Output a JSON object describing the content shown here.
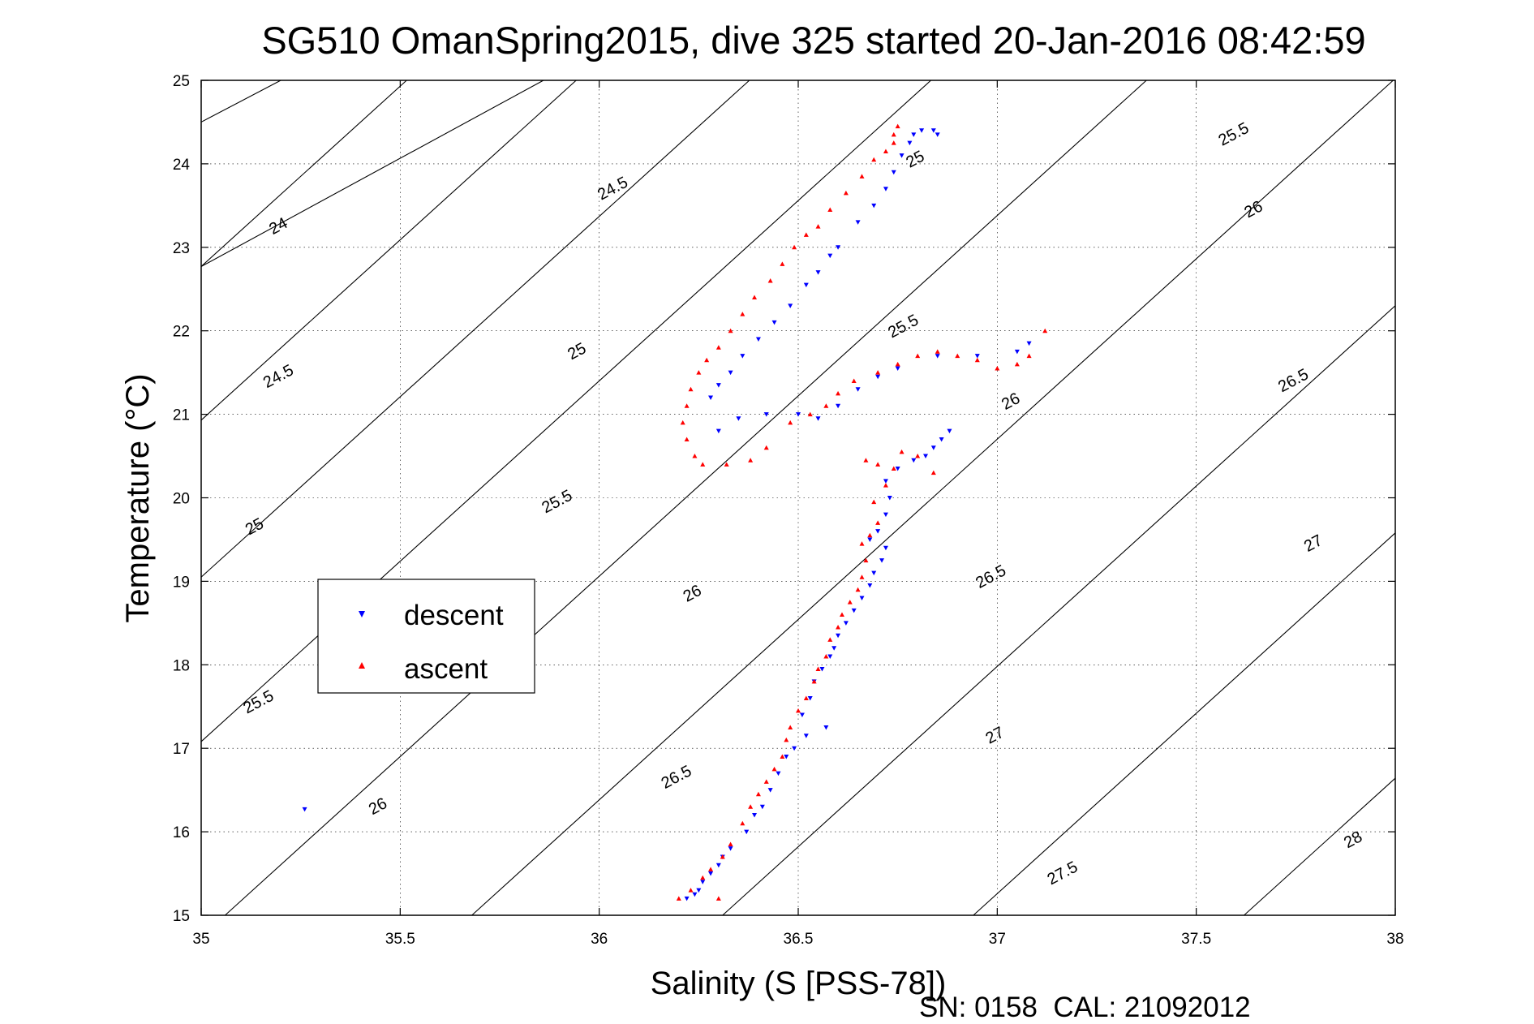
{
  "chart_data": {
    "type": "scatter",
    "title": "SG510 OmanSpring2015, dive 325 started 20-Jan-2016 08:42:59",
    "xlabel": "Salinity (S [PSS-78])",
    "ylabel": "Temperature (°C)",
    "xlim": [
      35,
      38
    ],
    "ylim": [
      15,
      25
    ],
    "x_ticks": [
      35,
      35.5,
      36,
      36.5,
      37,
      37.5,
      38
    ],
    "y_ticks": [
      15,
      16,
      17,
      18,
      19,
      20,
      21,
      22,
      23,
      24,
      25
    ],
    "grid": true,
    "legend_position": "left-center",
    "footer": "SN: 0158  CAL: 21092012",
    "density_contours": [
      {
        "level": 24,
        "label": "24",
        "a": 4.32,
        "c": 12.5
      },
      {
        "level": 24.5,
        "label": "24.5",
        "a": 4.32,
        "c": 12.5
      },
      {
        "level": 25,
        "label": "25",
        "a": 4.32,
        "c": 12.5
      },
      {
        "level": 25.5,
        "label": "25.5",
        "a": 4.32,
        "c": 12.5
      },
      {
        "level": 26,
        "label": "26",
        "a": 4.32,
        "c": 12.5
      },
      {
        "level": 26.5,
        "label": "26.5",
        "a": 4.32,
        "c": 12.5
      },
      {
        "level": 27,
        "label": "27",
        "a": 4.32,
        "c": 12.5
      },
      {
        "level": 27.5,
        "label": "27.5",
        "a": 4.32,
        "c": 12.5
      },
      {
        "level": 28,
        "label": "28",
        "a": 4.32,
        "c": 12.5
      }
    ],
    "contour_labels": [
      {
        "text": "24",
        "s": 35.2,
        "t": 23.2
      },
      {
        "text": "24.5",
        "s": 36.04,
        "t": 23.65
      },
      {
        "text": "25",
        "s": 36.8,
        "t": 24.0
      },
      {
        "text": "25.5",
        "s": 37.6,
        "t": 24.3
      },
      {
        "text": "24.5",
        "s": 35.2,
        "t": 21.4
      },
      {
        "text": "25",
        "s": 35.95,
        "t": 21.7
      },
      {
        "text": "25.5",
        "s": 36.77,
        "t": 22.0
      },
      {
        "text": "26",
        "s": 37.65,
        "t": 23.4
      },
      {
        "text": "25",
        "s": 35.14,
        "t": 19.6
      },
      {
        "text": "25.5",
        "s": 35.9,
        "t": 19.9
      },
      {
        "text": "26",
        "s": 37.04,
        "t": 21.1
      },
      {
        "text": "26.5",
        "s": 37.75,
        "t": 21.35
      },
      {
        "text": "25.5",
        "s": 35.15,
        "t": 17.5
      },
      {
        "text": "26",
        "s": 36.24,
        "t": 18.8
      },
      {
        "text": "26.5",
        "s": 36.99,
        "t": 19.0
      },
      {
        "text": "27",
        "s": 37.8,
        "t": 19.4
      },
      {
        "text": "26",
        "s": 35.45,
        "t": 16.25
      },
      {
        "text": "26.5",
        "s": 36.2,
        "t": 16.6
      },
      {
        "text": "27",
        "s": 37.0,
        "t": 17.1
      },
      {
        "text": "27.5",
        "s": 37.17,
        "t": 15.45
      },
      {
        "text": "28",
        "s": 37.9,
        "t": 15.85
      }
    ],
    "series": [
      {
        "name": "descent",
        "color": "#0000ff",
        "marker": "triangle-down",
        "points": [
          [
            35.26,
            16.27
          ],
          [
            36.22,
            15.2
          ],
          [
            36.24,
            15.25
          ],
          [
            36.25,
            15.3
          ],
          [
            36.26,
            15.4
          ],
          [
            36.28,
            15.5
          ],
          [
            36.3,
            15.6
          ],
          [
            36.31,
            15.7
          ],
          [
            36.33,
            15.8
          ],
          [
            36.37,
            16.0
          ],
          [
            36.39,
            16.2
          ],
          [
            36.41,
            16.3
          ],
          [
            36.43,
            16.5
          ],
          [
            36.45,
            16.7
          ],
          [
            36.47,
            16.9
          ],
          [
            36.49,
            17.0
          ],
          [
            36.52,
            17.15
          ],
          [
            36.57,
            17.25
          ],
          [
            36.51,
            17.4
          ],
          [
            36.53,
            17.6
          ],
          [
            36.54,
            17.8
          ],
          [
            36.56,
            17.95
          ],
          [
            36.58,
            18.1
          ],
          [
            36.59,
            18.2
          ],
          [
            36.6,
            18.35
          ],
          [
            36.62,
            18.5
          ],
          [
            36.64,
            18.65
          ],
          [
            36.66,
            18.8
          ],
          [
            36.68,
            18.95
          ],
          [
            36.69,
            19.1
          ],
          [
            36.71,
            19.25
          ],
          [
            36.72,
            19.4
          ],
          [
            36.68,
            19.5
          ],
          [
            36.7,
            19.6
          ],
          [
            36.72,
            19.8
          ],
          [
            36.73,
            20.0
          ],
          [
            36.72,
            20.2
          ],
          [
            36.75,
            20.35
          ],
          [
            36.79,
            20.45
          ],
          [
            36.82,
            20.5
          ],
          [
            36.84,
            20.6
          ],
          [
            36.86,
            20.7
          ],
          [
            36.88,
            20.8
          ],
          [
            36.3,
            20.8
          ],
          [
            36.35,
            20.95
          ],
          [
            36.42,
            21.0
          ],
          [
            36.5,
            21.0
          ],
          [
            36.55,
            20.95
          ],
          [
            36.6,
            21.1
          ],
          [
            36.65,
            21.3
          ],
          [
            36.7,
            21.45
          ],
          [
            36.75,
            21.55
          ],
          [
            36.85,
            21.7
          ],
          [
            36.95,
            21.7
          ],
          [
            37.05,
            21.75
          ],
          [
            37.08,
            21.85
          ],
          [
            36.28,
            21.2
          ],
          [
            36.3,
            21.35
          ],
          [
            36.33,
            21.5
          ],
          [
            36.36,
            21.7
          ],
          [
            36.4,
            21.9
          ],
          [
            36.44,
            22.1
          ],
          [
            36.48,
            22.3
          ],
          [
            36.52,
            22.55
          ],
          [
            36.55,
            22.7
          ],
          [
            36.58,
            22.9
          ],
          [
            36.6,
            23.0
          ],
          [
            36.65,
            23.3
          ],
          [
            36.69,
            23.5
          ],
          [
            36.72,
            23.7
          ],
          [
            36.74,
            23.9
          ],
          [
            36.76,
            24.1
          ],
          [
            36.78,
            24.25
          ],
          [
            36.79,
            24.35
          ],
          [
            36.81,
            24.4
          ],
          [
            36.84,
            24.4
          ],
          [
            36.85,
            24.35
          ]
        ]
      },
      {
        "name": "ascent",
        "color": "#ff0000",
        "marker": "triangle-up",
        "points": [
          [
            36.2,
            15.2
          ],
          [
            36.23,
            15.3
          ],
          [
            36.26,
            15.45
          ],
          [
            36.28,
            15.55
          ],
          [
            36.31,
            15.7
          ],
          [
            36.33,
            15.85
          ],
          [
            36.3,
            15.2
          ],
          [
            36.36,
            16.1
          ],
          [
            36.38,
            16.3
          ],
          [
            36.4,
            16.45
          ],
          [
            36.42,
            16.6
          ],
          [
            36.44,
            16.75
          ],
          [
            36.46,
            16.9
          ],
          [
            36.47,
            17.1
          ],
          [
            36.48,
            17.25
          ],
          [
            36.5,
            17.45
          ],
          [
            36.52,
            17.6
          ],
          [
            36.54,
            17.8
          ],
          [
            36.55,
            17.95
          ],
          [
            36.57,
            18.1
          ],
          [
            36.58,
            18.3
          ],
          [
            36.6,
            18.45
          ],
          [
            36.61,
            18.6
          ],
          [
            36.63,
            18.75
          ],
          [
            36.65,
            18.9
          ],
          [
            36.66,
            19.05
          ],
          [
            36.67,
            19.25
          ],
          [
            36.66,
            19.45
          ],
          [
            36.68,
            19.55
          ],
          [
            36.7,
            19.7
          ],
          [
            36.69,
            19.95
          ],
          [
            36.72,
            20.15
          ],
          [
            36.74,
            20.35
          ],
          [
            36.67,
            20.45
          ],
          [
            36.7,
            20.4
          ],
          [
            36.76,
            20.55
          ],
          [
            36.8,
            20.5
          ],
          [
            36.84,
            20.3
          ],
          [
            36.22,
            20.7
          ],
          [
            36.24,
            20.5
          ],
          [
            36.26,
            20.4
          ],
          [
            36.32,
            20.4
          ],
          [
            36.38,
            20.45
          ],
          [
            36.42,
            20.6
          ],
          [
            36.48,
            20.9
          ],
          [
            36.53,
            21.0
          ],
          [
            36.57,
            21.1
          ],
          [
            36.6,
            21.25
          ],
          [
            36.64,
            21.4
          ],
          [
            36.7,
            21.5
          ],
          [
            36.75,
            21.6
          ],
          [
            36.8,
            21.7
          ],
          [
            36.85,
            21.75
          ],
          [
            36.9,
            21.7
          ],
          [
            36.95,
            21.65
          ],
          [
            37.0,
            21.55
          ],
          [
            37.05,
            21.6
          ],
          [
            37.08,
            21.7
          ],
          [
            37.12,
            22.0
          ],
          [
            36.21,
            20.9
          ],
          [
            36.22,
            21.1
          ],
          [
            36.23,
            21.3
          ],
          [
            36.25,
            21.5
          ],
          [
            36.27,
            21.65
          ],
          [
            36.3,
            21.8
          ],
          [
            36.33,
            22.0
          ],
          [
            36.36,
            22.2
          ],
          [
            36.39,
            22.4
          ],
          [
            36.43,
            22.6
          ],
          [
            36.46,
            22.8
          ],
          [
            36.49,
            23.0
          ],
          [
            36.52,
            23.15
          ],
          [
            36.55,
            23.25
          ],
          [
            36.58,
            23.45
          ],
          [
            36.62,
            23.65
          ],
          [
            36.66,
            23.85
          ],
          [
            36.69,
            24.05
          ],
          [
            36.72,
            24.15
          ],
          [
            36.74,
            24.25
          ],
          [
            36.75,
            24.45
          ],
          [
            36.74,
            24.35
          ]
        ]
      }
    ]
  },
  "legend": {
    "items": [
      {
        "label": "descent",
        "color": "#0000ff"
      },
      {
        "label": "ascent",
        "color": "#ff0000"
      }
    ]
  }
}
